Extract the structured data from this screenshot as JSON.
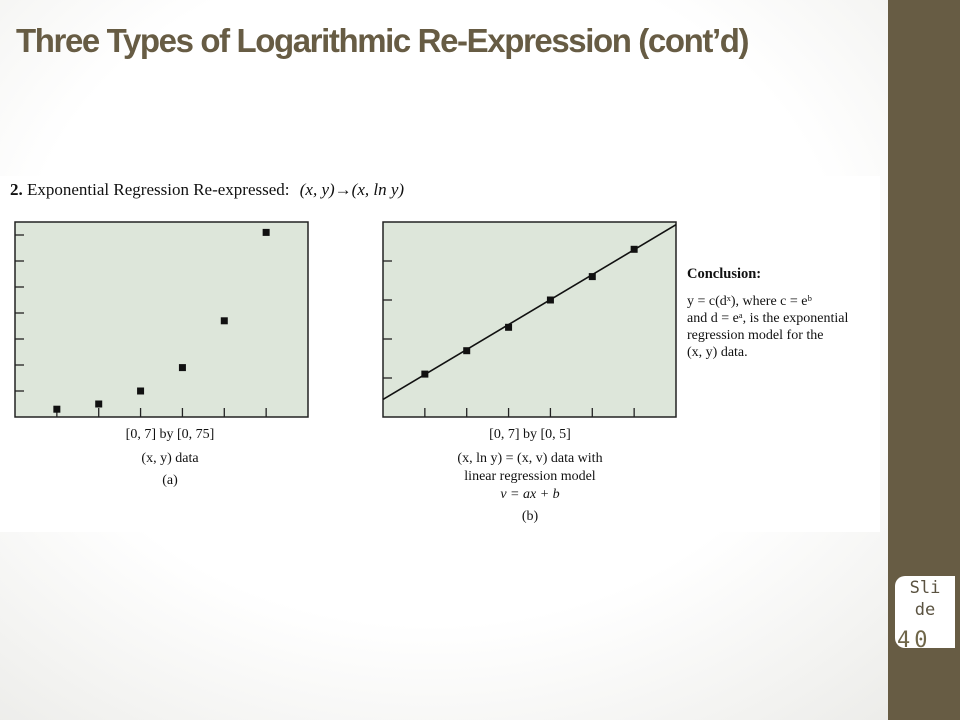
{
  "slide": {
    "title": "Three Types of Logarithmic Re-Expression (cont’d)",
    "badge": [
      "Sli",
      "de",
      ""
    ],
    "number": "40"
  },
  "figure": {
    "heading_number": "2.",
    "heading_text": "Exponential Regression Re-expressed:",
    "heading_transform": "(x, y)→(x, ln y)"
  },
  "chart_data": [
    {
      "type": "scatter",
      "xlim": [
        0,
        7
      ],
      "ylim": [
        0,
        75
      ],
      "x": [
        1,
        2,
        3,
        4,
        5,
        6
      ],
      "y": [
        3,
        5,
        10,
        19,
        37,
        71
      ],
      "caption": [
        "[0, 7] by [0, 75]",
        "(x, y) data",
        "(a)"
      ]
    },
    {
      "type": "scatter",
      "xlim": [
        0,
        7
      ],
      "ylim": [
        0,
        5
      ],
      "x": [
        1,
        2,
        3,
        4,
        5,
        6
      ],
      "y": [
        1.1,
        1.7,
        2.3,
        3.0,
        3.6,
        4.3
      ],
      "regression_line": {
        "slope": 0.64,
        "intercept": 0.45
      },
      "caption": [
        "[0, 7] by [0, 5]",
        "(x, ln y) = (x, v) data with",
        "linear regression model",
        "v = ax + b",
        "(b)"
      ]
    }
  ],
  "conclusion": {
    "heading": "Conclusion:",
    "lines": [
      "y = c(dˣ), where c = eᵇ",
      "and d = eᵃ, is the exponential",
      "regression model for the",
      "(x, y) data."
    ]
  },
  "colors": {
    "accent": "#675c44",
    "plot_bg": "#dde6da"
  }
}
